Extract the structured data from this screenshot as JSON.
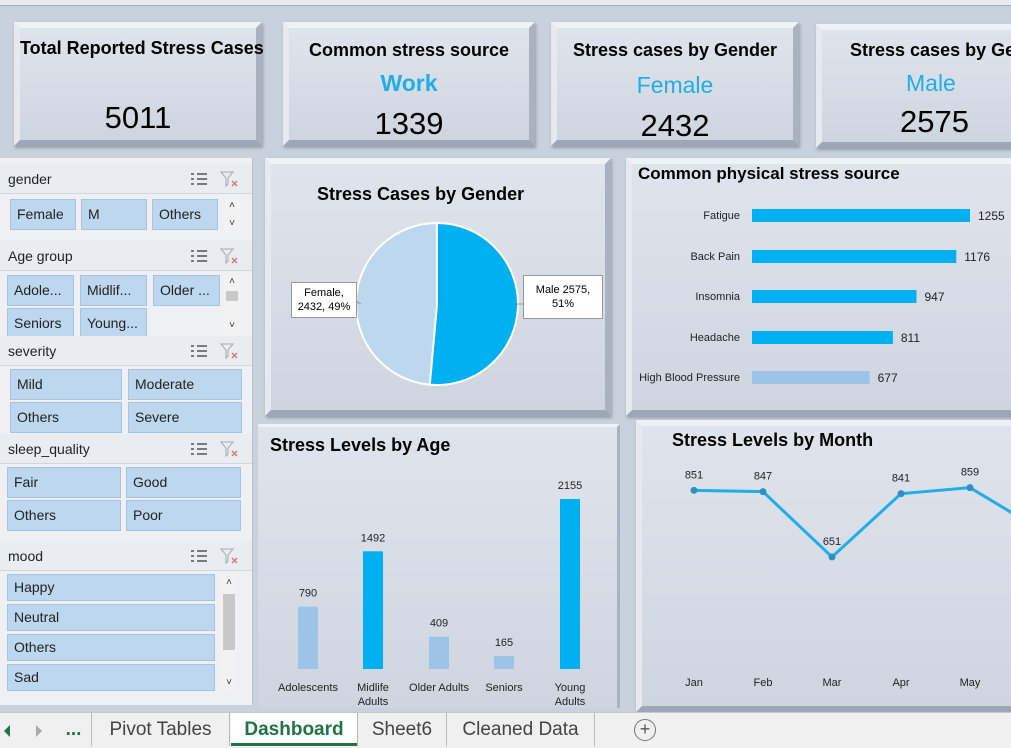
{
  "kpis": [
    {
      "title": "Total Reported Stress Cases",
      "sub": "",
      "value": "5011"
    },
    {
      "title": "Common stress source",
      "sub": "Work",
      "value": "1339"
    },
    {
      "title": "Stress cases by Gender",
      "sub": "Female",
      "value": "2432"
    },
    {
      "title": "Stress cases by Gender",
      "sub": "Male",
      "value": "2575"
    }
  ],
  "slicers": {
    "gender": {
      "title": "gender",
      "items": [
        "Female",
        "M",
        "Others"
      ]
    },
    "age_group": {
      "title": "Age group",
      "items": [
        "Adole...",
        "Midlif...",
        "Older ...",
        "Seniors",
        "Young..."
      ]
    },
    "severity": {
      "title": "severity",
      "items": [
        "Mild",
        "Moderate",
        "Others",
        "Severe"
      ]
    },
    "sleep_quality": {
      "title": "sleep_quality",
      "items": [
        "Fair",
        "Good",
        "Others",
        "Poor"
      ]
    },
    "mood": {
      "title": "mood",
      "items": [
        "Happy",
        "Neutral",
        "Others",
        "Sad"
      ]
    }
  },
  "chart_data": [
    {
      "type": "pie",
      "title": "Stress Cases by Gender",
      "categories": [
        "Female",
        "Male"
      ],
      "values": [
        2432,
        2575
      ],
      "percent_labels": [
        "49%",
        "51%"
      ],
      "data_labels": [
        "Female, 2432, 49%",
        "Male 2575, 51%"
      ],
      "colors": [
        "#bdd7ee",
        "#00b0f0"
      ]
    },
    {
      "type": "bar",
      "orientation": "horizontal",
      "title": "Common physical stress source",
      "categories": [
        "Fatigue",
        "Back Pain",
        "Insomnia",
        "Headache",
        "High Blood Pressure"
      ],
      "values": [
        1255,
        1176,
        947,
        811,
        677
      ],
      "colors": [
        "#00b0f0",
        "#00b0f0",
        "#00b0f0",
        "#00b0f0",
        "#9dc3e6"
      ]
    },
    {
      "type": "bar",
      "title": "Stress Levels by Age",
      "categories": [
        "Adolescents",
        "Midlife Adults",
        "Older Adults",
        "Seniors",
        "Young Adults"
      ],
      "values": [
        790,
        1492,
        409,
        165,
        2155
      ],
      "colors": [
        "#9dc3e6",
        "#00b0f0",
        "#9dc3e6",
        "#9dc3e6",
        "#00b0f0"
      ]
    },
    {
      "type": "line",
      "title": "Stress Levels by Month",
      "categories": [
        "Jan",
        "Feb",
        "Mar",
        "Apr",
        "May"
      ],
      "values": [
        851,
        847,
        651,
        841,
        859
      ],
      "color": "#1faee8"
    }
  ],
  "tabs": {
    "ellipsis": "...",
    "items": [
      "Pivot Tables",
      "Dashboard",
      "Sheet6",
      "Cleaned Data"
    ],
    "active": "Dashboard",
    "add_symbol": "+"
  }
}
